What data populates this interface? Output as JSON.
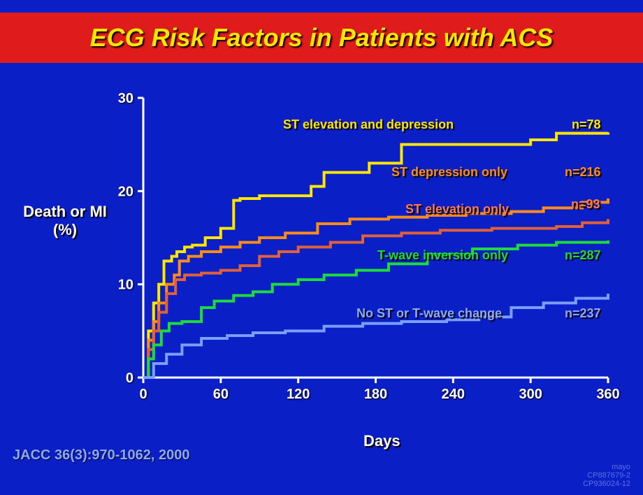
{
  "title": "ECG Risk Factors in Patients with ACS",
  "ylabel_line1": "Death or MI",
  "ylabel_line2": "(%)",
  "xlabel": "Days",
  "citation": "JACC 36(3):970-1062, 2000",
  "corner_text1": "mayo",
  "corner_text2": "CP887679-2",
  "corner_text3": "CP936024-12",
  "background_color": "#0b1fc7",
  "title_bg": "#e01b1b",
  "title_color": "#ffe600",
  "chart": {
    "type": "stepped-line",
    "xlim": [
      0,
      360
    ],
    "ylim": [
      0,
      30
    ],
    "xticks": [
      0,
      60,
      120,
      180,
      240,
      300,
      360
    ],
    "yticks": [
      0,
      10,
      20,
      30
    ],
    "axis_color": "#ffffff",
    "axis_width": 3,
    "series": [
      {
        "id": "st_elev_dep",
        "label": "ST elevation and depression",
        "n": "n=78",
        "color": "#ffe600",
        "line_width": 4,
        "label_color": "#ffe600",
        "label_x": 405,
        "label_y": 168,
        "n_x": 818,
        "n_y": 168,
        "points": [
          [
            0,
            0
          ],
          [
            4,
            5
          ],
          [
            8,
            8
          ],
          [
            12,
            10
          ],
          [
            16,
            12.5
          ],
          [
            22,
            13
          ],
          [
            26,
            13.5
          ],
          [
            32,
            14
          ],
          [
            38,
            14.2
          ],
          [
            48,
            15
          ],
          [
            60,
            16
          ],
          [
            70,
            19
          ],
          [
            75,
            19.2
          ],
          [
            90,
            19.5
          ],
          [
            110,
            19.5
          ],
          [
            130,
            20.5
          ],
          [
            140,
            22
          ],
          [
            160,
            22
          ],
          [
            175,
            23
          ],
          [
            200,
            25
          ],
          [
            230,
            25
          ],
          [
            260,
            25
          ],
          [
            300,
            25.5
          ],
          [
            320,
            26.2
          ],
          [
            360,
            26.3
          ]
        ]
      },
      {
        "id": "st_dep_only",
        "label": "ST depression only",
        "n": "n=216",
        "color": "#ff8c1a",
        "line_width": 4,
        "label_color": "#ff8c1a",
        "label_x": 560,
        "label_y": 236,
        "n_x": 808,
        "n_y": 236,
        "points": [
          [
            0,
            0
          ],
          [
            4,
            4
          ],
          [
            8,
            6
          ],
          [
            12,
            8
          ],
          [
            18,
            10
          ],
          [
            24,
            11
          ],
          [
            28,
            12.5
          ],
          [
            35,
            13
          ],
          [
            45,
            13.5
          ],
          [
            60,
            14
          ],
          [
            75,
            14.5
          ],
          [
            90,
            15
          ],
          [
            110,
            15.5
          ],
          [
            135,
            16.5
          ],
          [
            160,
            17
          ],
          [
            190,
            17.2
          ],
          [
            220,
            17.4
          ],
          [
            250,
            17.6
          ],
          [
            285,
            17.8
          ],
          [
            310,
            18.2
          ],
          [
            340,
            18.8
          ],
          [
            360,
            19.2
          ]
        ]
      },
      {
        "id": "st_elev_only",
        "label": "ST elevation only",
        "n": "n=93",
        "color": "#e0603a",
        "line_width": 4,
        "label_color": "#ff7a4a",
        "label_x": 580,
        "label_y": 289,
        "n_x": 817,
        "n_y": 282,
        "points": [
          [
            0,
            0
          ],
          [
            4,
            3
          ],
          [
            8,
            5
          ],
          [
            12,
            7
          ],
          [
            18,
            9
          ],
          [
            25,
            10.5
          ],
          [
            32,
            11
          ],
          [
            45,
            11.2
          ],
          [
            60,
            11.5
          ],
          [
            75,
            12
          ],
          [
            90,
            13
          ],
          [
            105,
            13.5
          ],
          [
            120,
            14
          ],
          [
            145,
            14.5
          ],
          [
            170,
            15.2
          ],
          [
            200,
            15.5
          ],
          [
            230,
            15.8
          ],
          [
            270,
            16
          ],
          [
            300,
            16
          ],
          [
            320,
            16.2
          ],
          [
            340,
            16.6
          ],
          [
            360,
            17
          ]
        ]
      },
      {
        "id": "twave_only",
        "label": "T-wave inversion only",
        "n": "n=287",
        "color": "#1eda3a",
        "line_width": 4,
        "label_color": "#1eda3a",
        "label_x": 540,
        "label_y": 355,
        "n_x": 808,
        "n_y": 355,
        "points": [
          [
            0,
            0
          ],
          [
            4,
            2
          ],
          [
            8,
            3.5
          ],
          [
            14,
            5
          ],
          [
            20,
            5.8
          ],
          [
            30,
            6
          ],
          [
            45,
            7.5
          ],
          [
            55,
            8.2
          ],
          [
            70,
            8.8
          ],
          [
            85,
            9.2
          ],
          [
            100,
            10
          ],
          [
            120,
            10.5
          ],
          [
            140,
            11
          ],
          [
            165,
            11.5
          ],
          [
            190,
            12.2
          ],
          [
            220,
            13.2
          ],
          [
            255,
            13.8
          ],
          [
            290,
            14.2
          ],
          [
            320,
            14.5
          ],
          [
            360,
            14.7
          ]
        ]
      },
      {
        "id": "no_change",
        "label": "No ST or T-wave change",
        "n": "n=237",
        "color": "#7a9fff",
        "line_width": 4,
        "label_color": "#8aa9ff",
        "label_x": 510,
        "label_y": 438,
        "n_x": 808,
        "n_y": 438,
        "points": [
          [
            0,
            0
          ],
          [
            8,
            1.5
          ],
          [
            18,
            2.5
          ],
          [
            30,
            3.5
          ],
          [
            45,
            4.2
          ],
          [
            65,
            4.5
          ],
          [
            85,
            4.8
          ],
          [
            110,
            5
          ],
          [
            140,
            5.5
          ],
          [
            170,
            5.8
          ],
          [
            200,
            6
          ],
          [
            235,
            6.2
          ],
          [
            260,
            6.5
          ],
          [
            285,
            7.5
          ],
          [
            310,
            8
          ],
          [
            335,
            8.5
          ],
          [
            360,
            9
          ]
        ]
      }
    ]
  }
}
